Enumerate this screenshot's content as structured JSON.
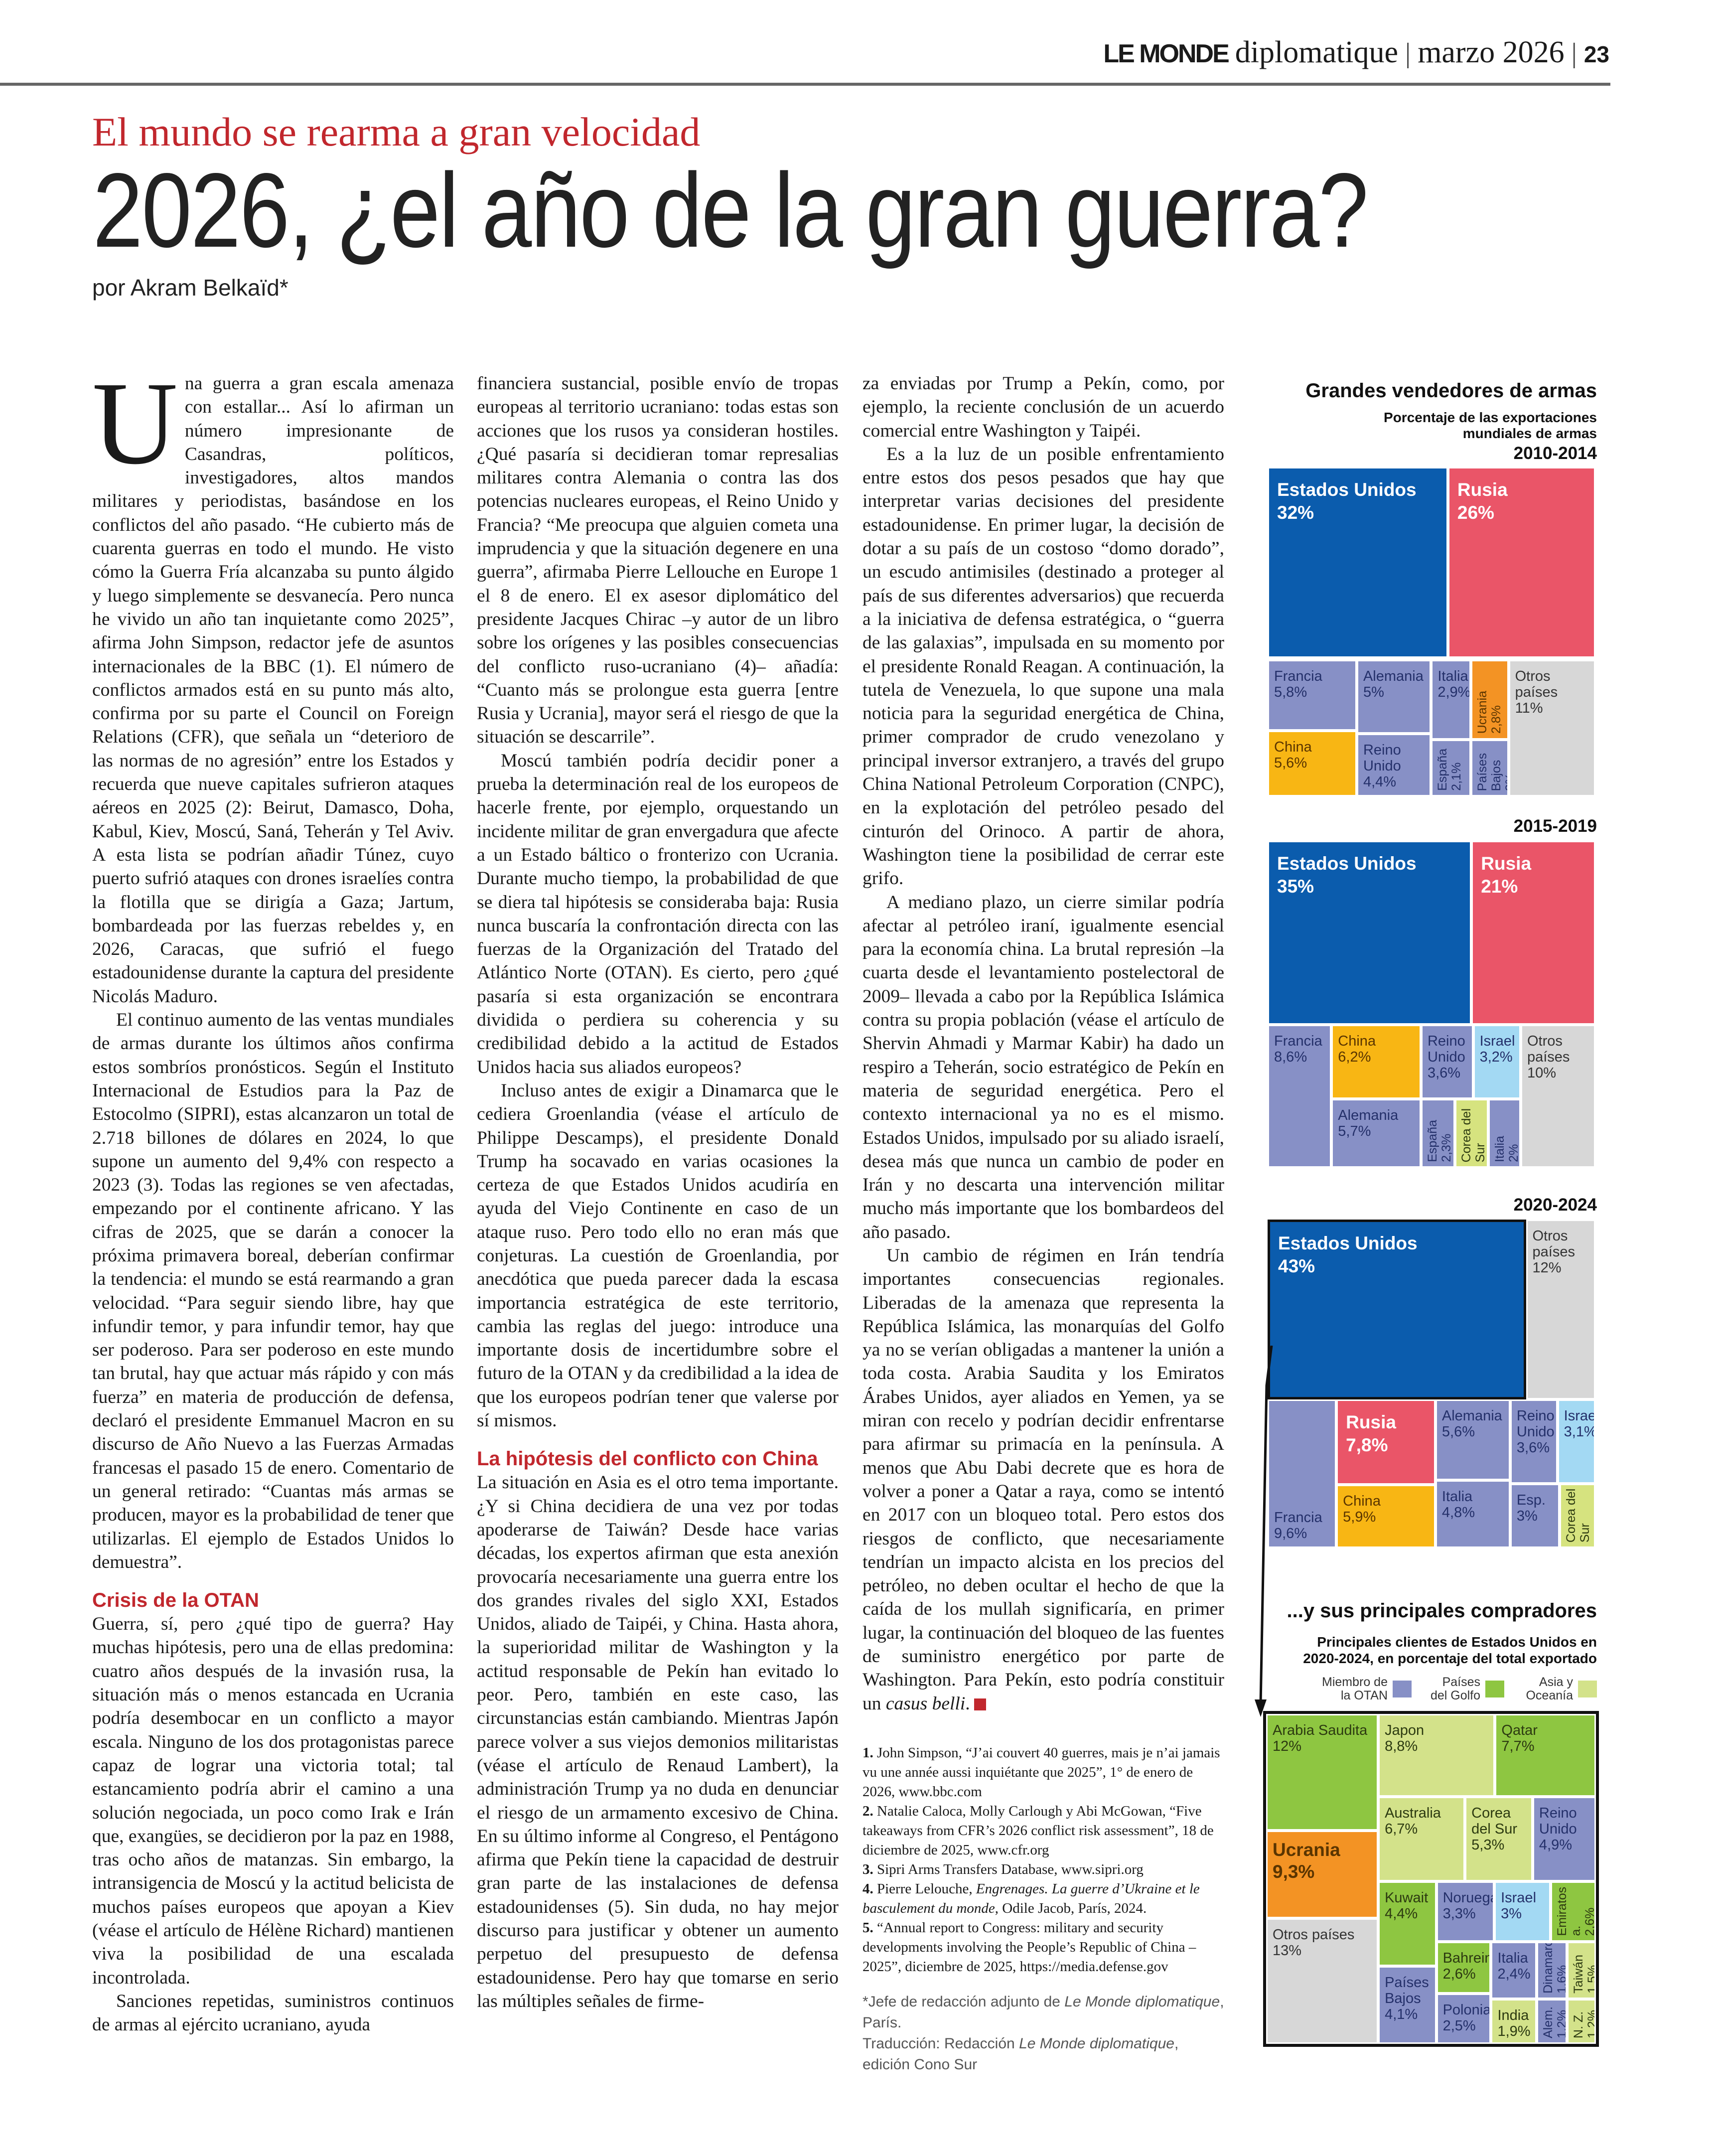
{
  "header": {
    "brand_bold": "LE MONDE",
    "brand_rest": "diplomatique",
    "separator": "|",
    "date": "marzo 2026",
    "page": "23"
  },
  "article": {
    "kicker": "El mundo se rearma a gran velocidad",
    "title": "2026, ¿el año de la gran guerra?",
    "byline": "por Akram Belkaïd*",
    "dropcap": "U",
    "col1": [
      "na guerra a gran escala amenaza con estallar... Así lo afirman un número impresionante de Casandras, políticos, investigadores, altos mandos militares y periodistas, basándose en los conflictos del año pasado. “He cubierto más de cuarenta guerras en todo el mundo. He visto cómo la Guerra Fría alcanzaba su punto álgido y luego simplemente se desvanecía. Pero nunca he vivido un año tan inquietante como 2025”, afirma John Simpson, redactor jefe de asuntos internacionales de la BBC (1). El número de conflictos armados está en su punto más alto, confirma por su parte el Council on Foreign Relations (CFR), que señala un “deterioro de las normas de no agresión” entre los Estados y recuerda que nueve capitales sufrieron ataques aéreos en 2025 (2): Beirut, Damasco, Doha, Kabul, Kiev, Moscú, Saná, Teherán y Tel Aviv. A esta lista se podrían añadir Túnez, cuyo puerto sufrió ataques con drones israelíes contra la flotilla que se dirigía a Gaza; Jartum, bombardeada por las fuerzas rebeldes y, en 2026, Caracas, que sufrió el fuego estadounidense durante la captura del presidente Nicolás Maduro.",
      "El continuo aumento de las ventas mundiales de armas durante los últimos años confirma estos sombríos pronósticos. Según el Instituto Internacional de Estudios para la Paz de Estocolmo (SIPRI), estas alcanzaron un total de 2.718 billones de dólares en 2024, lo que supone un aumento del 9,4% con respecto a 2023 (3). Todas las regiones se ven afectadas, empezando por el continente africano. Y las cifras de 2025, que se darán a conocer la próxima primavera boreal, deberían confirmar la tendencia: el mundo se está rearmando a gran velocidad. “Para seguir siendo libre, hay que infundir temor, y para infundir temor, hay que ser poderoso. Para ser poderoso en este mundo tan brutal, hay que actuar más rápido y con más fuerza” en materia de producción de defensa, declaró el presidente Emmanuel Macron en su discurso de Año Nuevo a las Fuerzas Armadas francesas el pasado 15 de enero. Comentario de un general retirado: “Cuantas más armas se producen, mayor es la probabilidad de tener que utilizarlas. El ejemplo de Estados Unidos lo demuestra”."
    ],
    "subhead1": "Crisis de la OTAN",
    "col1b": [
      "Guerra, sí, pero ¿qué tipo de guerra? Hay muchas hipótesis, pero una de ellas predomina: cuatro años después de la invasión rusa, la situación más o menos estancada en Ucrania podría desembocar en un conflicto a mayor escala. Ninguno de los dos protagonistas parece capaz de lograr una victoria total; tal estancamiento podría abrir el camino a una solución negociada, un poco como Irak e Irán que, exangües, se decidieron por la paz en 1988, tras ocho años de matanzas. Sin embargo, la intransigencia de Moscú y la actitud belicista de muchos países europeos que apoyan a Kiev (véase el artículo de Hélène Richard) mantienen viva la posibilidad de una escalada incontrolada.",
      "Sanciones repetidas, suministros continuos de armas al ejército ucraniano, ayuda"
    ],
    "col2": [
      "financiera sustancial, posible envío de tropas europeas al territorio ucraniano: todas estas son acciones que los rusos ya consideran hostiles. ¿Qué pasaría si decidieran tomar represalias militares contra Alemania o contra las dos potencias nucleares europeas, el Reino Unido y Francia? “Me preocupa que alguien cometa una imprudencia y que la situación degenere en una guerra”, afirmaba Pierre Lellouche en Europe 1 el 8 de enero. El ex asesor diplomático del presidente Jacques Chirac –y autor de un libro sobre los orígenes y las posibles consecuencias del conflicto ruso-ucraniano (4)– añadía: “Cuanto más se prolongue esta guerra [entre Rusia y Ucrania], mayor será el riesgo de que la situación se descarrile”.",
      "Moscú también podría decidir poner a prueba la determinación real de los europeos de hacerle frente, por ejemplo, orquestando un incidente militar de gran envergadura que afecte a un Estado báltico o fronterizo con Ucrania. Durante mucho tiempo, la probabilidad de que se diera tal hipótesis se consideraba baja: Rusia nunca buscaría la confrontación directa con las fuerzas de la Organización del Tratado del Atlántico Norte (OTAN). Es cierto, pero ¿qué pasaría si esta organización se encontrara dividida o perdiera su coherencia y su credibilidad debido a la actitud de Estados Unidos hacia sus aliados europeos?",
      "Incluso antes de exigir a Dinamarca que le cediera Groenlandia (véase el artículo de Philippe Descamps), el presidente Donald Trump ha socavado en varias ocasiones la certeza de que Estados Unidos acudiría en ayuda del Viejo Continente en caso de un ataque ruso. Pero todo ello no eran más que conjeturas. La cuestión de Groenlandia, por anecdótica que pueda parecer dada la escasa importancia estratégica de este territorio, cambia las reglas del juego: introduce una importante dosis de incertidumbre sobre el futuro de la OTAN y da credibilidad a la idea de que los europeos podrían tener que valerse por sí mismos."
    ],
    "subhead2": "La hipótesis del conflicto con China",
    "col2b": [
      "La situación en Asia es el otro tema importante. ¿Y si China decidiera de una vez por todas apoderarse de Taiwán? Desde hace varias décadas, los expertos afirman que esta anexión provocaría necesariamente una guerra entre los dos grandes rivales del siglo XXI, Estados Unidos, aliado de Taipéi, y China. Hasta ahora, la superioridad militar de Washington y la actitud responsable de Pekín han evitado lo peor. Pero, también en este caso, las circunstancias están cambiando. Mientras Japón parece volver a sus viejos demonios militaristas (véase el artículo de Renaud Lambert), la administración Trump ya no duda en denunciar el riesgo de un armamento excesivo de China. En su último informe al Congreso, el Pentágono afirma que Pekín tiene la capacidad de destruir gran parte de las instalaciones de defensa estadounidenses (5). Sin duda, no hay mejor discurso para justificar y obtener un aumento perpetuo del presupuesto de defensa estadounidense. Pero hay que tomarse en serio las múltiples señales de firme-"
    ],
    "col3": [
      "za enviadas por Trump a Pekín, como, por ejemplo, la reciente conclusión de un acuerdo comercial entre Washington y Taipéi.",
      "Es a la luz de un posible enfrentamiento entre estos dos pesos pesados que hay que interpretar varias decisiones del presidente estadounidense. En primer lugar, la decisión de dotar a su país de un costoso “domo dorado”, un escudo antimisiles (destinado a proteger al país de sus diferentes adversarios) que recuerda a la iniciativa de defensa estratégica, o “guerra de las galaxias”, impulsada en su momento por el presidente Ronald Reagan. A continuación, la tutela de Venezuela, lo que supone una mala noticia para la seguridad energética de China, primer comprador de crudo venezolano y principal inversor extranjero, a través del grupo China National Petroleum Corporation (CNPC), en la explotación del petróleo pesado del cinturón del Orinoco. A partir de ahora, Washington tiene la posibilidad de cerrar este grifo.",
      "A mediano plazo, un cierre similar podría afectar al petróleo iraní, igualmente esencial para la economía china. La brutal represión –la cuarta desde el levantamiento postelectoral de 2009– llevada a cabo por la República Islámica contra su propia población (véase el artículo de Shervin Ahmadi y Marmar Kabir) ha dado un respiro a Teherán, socio estratégico de Pekín en materia de seguridad energética. Pero el contexto internacional ya no es el mismo. Estados Unidos, impulsado por su aliado israelí, desea más que nunca un cambio de poder en Irán y no descarta una intervención militar mucho más importante que los bombardeos del año pasado."
    ],
    "col3_last": {
      "text": "Un cambio de régimen en Irán tendría importantes consecuencias regionales. Liberadas de la amenaza que representa la República Islámica, las monarquías del Golfo ya no se verían obligadas a mantener la unión a toda costa. Arabia Saudita y los Emiratos Árabes Unidos, ayer aliados en Yemen, ya se miran con recelo y podrían decidir enfrentarse para afirmar su primacía en la península. A menos que Abu Dabi decrete que es hora de volver a poner a Qatar a raya, como se intentó en 2017 con un bloqueo total. Pero estos dos riesgos de conflicto, que necesariamente tendrían un impacto alcista en los precios del petróleo, no deben ocultar el hecho de que la caída de los mullah significaría, en primer lugar, la continuación del bloqueo de las fuentes de suministro energético por parte de Washington. Para Pekín, esto podría constituir un ",
      "italic": "casus belli",
      "end": "."
    },
    "footnotes": [
      {
        "num": "1.",
        "text": "John Simpson, “J’ai couvert 40 guerres, mais je n’ai jamais vu une année aussi inquiétante que 2025”, 1° de enero de 2026, www.bbc.com"
      },
      {
        "num": "2.",
        "text": "Natalie Caloca, Molly Carlough y Abi McGowan, “Five takeaways from CFR’s 2026 conflict risk assessment”, 18 de diciembre de 2025, www.cfr.org"
      },
      {
        "num": "3.",
        "text": "Sipri Arms Transfers Database, www.sipri.org"
      },
      {
        "num": "4.",
        "text": "Pierre Lelouche, ",
        "italic": "Engrenages. La guerre d’Ukraine et le basculement du monde",
        "after": ", Odile Jacob, París, 2024."
      },
      {
        "num": "5.",
        "text": "“Annual report to Congress: military and security developments involving the People’s Republic of China – 2025”, diciembre de 2025, https://media.defense.gov"
      }
    ],
    "credit": {
      "a": "*Jefe de redacción adjunto de ",
      "a_it": "Le Monde diplomatique",
      "a_end": ", París.",
      "b": "Traducción: Redacción ",
      "b_it": "Le Monde diplomatique",
      "b_end": ", edición Cono Sur"
    }
  },
  "colors": {
    "us": "#0b5cad",
    "russia": "#ea5568",
    "nato": "#8790c6",
    "china": "#f8b614",
    "ukraine": "#f39324",
    "other": "#d7d7d7",
    "israel": "#a3d9f3",
    "korea": "#d6e37f",
    "gulf": "#8ec641",
    "asia": "#d3e28a"
  },
  "chart_heading": {
    "title": "Grandes vendedores de armas",
    "subtitle1": "Porcentaje de las exportaciones",
    "subtitle2": "mundiales de armas"
  },
  "chart_data": [
    {
      "type": "treemap",
      "title": "2010-2014",
      "items": [
        {
          "name": "Estados Unidos",
          "value": 32,
          "label": "32%",
          "category": "us"
        },
        {
          "name": "Rusia",
          "value": 26,
          "label": "26%",
          "category": "russia"
        },
        {
          "name": "Francia",
          "value": 5.8,
          "label": "5,8%",
          "category": "nato"
        },
        {
          "name": "China",
          "value": 5.6,
          "label": "5,6%",
          "category": "china"
        },
        {
          "name": "Alemania",
          "value": 5,
          "label": "5%",
          "category": "nato"
        },
        {
          "name": "Reino Unido",
          "value": 4.4,
          "label": "4,4%",
          "category": "nato"
        },
        {
          "name": "Italia",
          "value": 2.9,
          "label": "2,9%",
          "category": "nato"
        },
        {
          "name": "Ucrania",
          "value": 2.8,
          "label": "2,8%",
          "category": "ukraine"
        },
        {
          "name": "España",
          "value": 2.1,
          "label": "2,1%",
          "category": "nato"
        },
        {
          "name": "Países Bajos",
          "value": 2,
          "label": "2%",
          "category": "nato"
        },
        {
          "name": "Otros países",
          "value": 11,
          "label": "11%",
          "category": "other"
        }
      ]
    },
    {
      "type": "treemap",
      "title": "2015-2019",
      "items": [
        {
          "name": "Estados Unidos",
          "value": 35,
          "label": "35%",
          "category": "us"
        },
        {
          "name": "Rusia",
          "value": 21,
          "label": "21%",
          "category": "russia"
        },
        {
          "name": "Francia",
          "value": 8.6,
          "label": "8,6%",
          "category": "nato"
        },
        {
          "name": "China",
          "value": 6.2,
          "label": "6,2%",
          "category": "china"
        },
        {
          "name": "Alemania",
          "value": 5.7,
          "label": "5,7%",
          "category": "nato"
        },
        {
          "name": "Reino Unido",
          "value": 3.6,
          "label": "3,6%",
          "category": "nato"
        },
        {
          "name": "Israel",
          "value": 3.2,
          "label": "3,2%",
          "category": "israel"
        },
        {
          "name": "España",
          "value": 2.3,
          "label": "2,3%",
          "category": "nato"
        },
        {
          "name": "Corea del Sur",
          "value": 2.1,
          "label": "2,1%",
          "category": "korea"
        },
        {
          "name": "Italia",
          "value": 2,
          "label": "2%",
          "category": "nato"
        },
        {
          "name": "Otros países",
          "value": 10,
          "label": "10%",
          "category": "other"
        }
      ]
    },
    {
      "type": "treemap",
      "title": "2020-2024",
      "items": [
        {
          "name": "Estados Unidos",
          "value": 43,
          "label": "43%",
          "category": "us"
        },
        {
          "name": "Otros países",
          "value": 12,
          "label": "12%",
          "category": "other"
        },
        {
          "name": "Francia",
          "value": 9.6,
          "label": "9,6%",
          "category": "nato"
        },
        {
          "name": "Rusia",
          "value": 7.8,
          "label": "7,8%",
          "category": "russia"
        },
        {
          "name": "China",
          "value": 5.9,
          "label": "5,9%",
          "category": "china"
        },
        {
          "name": "Alemania",
          "value": 5.6,
          "label": "5,6%",
          "category": "nato"
        },
        {
          "name": "Italia",
          "value": 4.8,
          "label": "4,8%",
          "category": "nato"
        },
        {
          "name": "Reino Unido",
          "value": 3.6,
          "label": "3,6%",
          "category": "nato"
        },
        {
          "name": "Israel",
          "value": 3.1,
          "label": "3,1%",
          "category": "israel"
        },
        {
          "name": "Esp.",
          "value": 3,
          "label": "3%",
          "category": "nato"
        },
        {
          "name": "Corea del Sur",
          "value": 2.2,
          "label": "2,2%",
          "category": "korea"
        }
      ]
    },
    {
      "type": "treemap",
      "title": "...y sus principales compradores",
      "subtitle": "Principales clientes de Estados Unidos en 2020-2024, en porcentaje del total exportado",
      "legend": [
        {
          "label": "Miembro de la OTAN",
          "category": "nato"
        },
        {
          "label": "Países del Golfo",
          "category": "gulf"
        },
        {
          "label": "Asia y Oceanía",
          "category": "asia"
        }
      ],
      "items": [
        {
          "name": "Arabia Saudita",
          "value": 12,
          "label": "12%",
          "category": "gulf"
        },
        {
          "name": "Ucrania",
          "value": 9.3,
          "label": "9,3%",
          "category": "ukraine"
        },
        {
          "name": "Otros países",
          "value": 13,
          "label": "13%",
          "category": "other"
        },
        {
          "name": "Japon",
          "value": 8.8,
          "label": "8,8%",
          "category": "asia"
        },
        {
          "name": "Qatar",
          "value": 7.7,
          "label": "7,7%",
          "category": "gulf"
        },
        {
          "name": "Australia",
          "value": 6.7,
          "label": "6,7%",
          "category": "asia"
        },
        {
          "name": "Corea del Sur",
          "value": 5.3,
          "label": "5,3%",
          "category": "asia"
        },
        {
          "name": "Reino Unido",
          "value": 4.9,
          "label": "4,9%",
          "category": "nato"
        },
        {
          "name": "Kuwait",
          "value": 4.4,
          "label": "4,4%",
          "category": "gulf"
        },
        {
          "name": "Países Bajos",
          "value": 4.1,
          "label": "4,1%",
          "category": "nato"
        },
        {
          "name": "Noruega",
          "value": 3.3,
          "label": "3,3%",
          "category": "nato"
        },
        {
          "name": "Israel",
          "value": 3,
          "label": "3%",
          "category": "israel"
        },
        {
          "name": "Emiratos a.",
          "value": 2.6,
          "label": "2,6%",
          "category": "gulf"
        },
        {
          "name": "Bahrein",
          "value": 2.6,
          "label": "2,6%",
          "category": "gulf"
        },
        {
          "name": "Polonia",
          "value": 2.5,
          "label": "2,5%",
          "category": "nato"
        },
        {
          "name": "Italia",
          "value": 2.4,
          "label": "2,4%",
          "category": "nato"
        },
        {
          "name": "India",
          "value": 1.9,
          "label": "1,9%",
          "category": "asia"
        },
        {
          "name": "Dinamarca",
          "value": 1.6,
          "label": "1,6%",
          "category": "nato"
        },
        {
          "name": "Taiwán",
          "value": 1.5,
          "label": "1,5%",
          "category": "asia"
        },
        {
          "name": "Alem.",
          "value": 1.2,
          "label": "1,2%",
          "category": "nato"
        },
        {
          "name": "N. Z.",
          "value": 1.2,
          "label": "1,2%",
          "category": "asia"
        }
      ]
    }
  ]
}
